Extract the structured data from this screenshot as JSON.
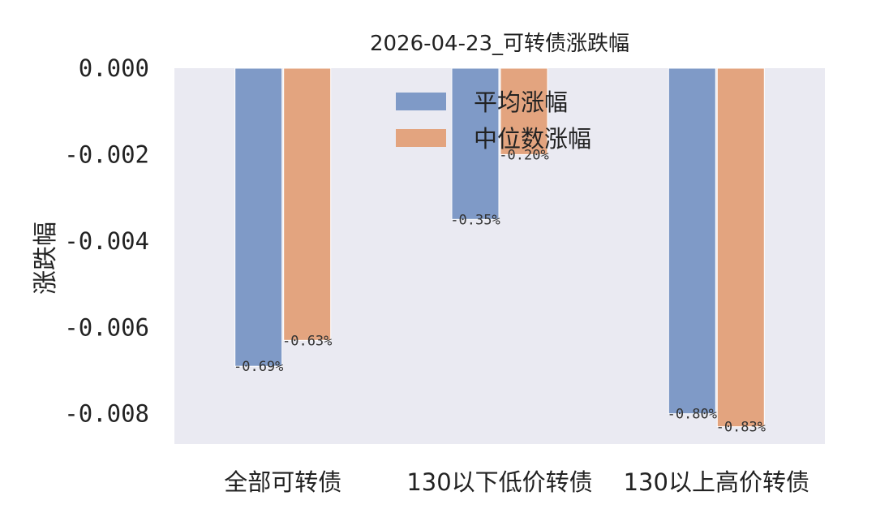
{
  "chart_data": {
    "type": "bar",
    "title": "2026-04-23_可转债涨跌幅",
    "xlabel": "",
    "ylabel": "涨跌幅",
    "categories": [
      "全部可转债",
      "130以下低价转债",
      "130以上高价转债"
    ],
    "series": [
      {
        "name": "平均涨幅",
        "values": [
          -0.0069,
          -0.0035,
          -0.008
        ],
        "labels": [
          "-0.69%",
          "-0.35%",
          "-0.80%"
        ],
        "color": "#7f9ac7"
      },
      {
        "name": "中位数涨幅",
        "values": [
          -0.0063,
          -0.002,
          -0.0083
        ],
        "labels": [
          "-0.63%",
          "-0.20%",
          "-0.83%"
        ],
        "color": "#e3a47f"
      }
    ],
    "ylim": [
      -0.0087,
      0.0
    ],
    "yticks": [
      0.0,
      -0.002,
      -0.004,
      -0.006,
      -0.008
    ],
    "ytick_labels": [
      "0.000",
      "-0.002",
      "-0.004",
      "-0.006",
      "-0.008"
    ],
    "grid": false,
    "legend_position": "top-center",
    "background_color": "#eaeaf2"
  }
}
